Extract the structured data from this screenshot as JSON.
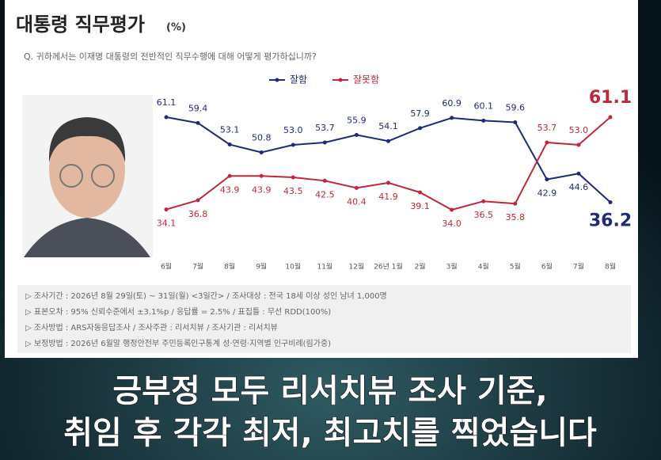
{
  "chart_data": {
    "type": "line",
    "title": "대통령 직무평가",
    "unit": "(%)",
    "subtitle": "Q. 귀하께서는 이재명 대통령의 전반적인 직무수행에 대해 어떻게 평가하십니까?",
    "categories": [
      "6월",
      "7월",
      "8월",
      "9월",
      "10월",
      "11월",
      "12월",
      "26년 1월",
      "2월",
      "3월",
      "4월",
      "5월",
      "6월",
      "7월",
      "8월"
    ],
    "series": [
      {
        "name": "잘함",
        "color": "#1f2a78",
        "values": [
          61.1,
          59.4,
          53.1,
          50.8,
          53.0,
          53.7,
          55.9,
          54.1,
          57.9,
          60.9,
          60.1,
          59.6,
          42.9,
          44.6,
          36.2
        ],
        "value_labels": [
          "61.1",
          "59.4",
          "53.1",
          "50.8",
          "53.0",
          "53.7",
          "55.9",
          "54.1",
          "57.9",
          "60.9",
          "60.1",
          "59.6",
          "42.9",
          "44.6",
          "36.2"
        ]
      },
      {
        "name": "잘못함",
        "color": "#c0283a",
        "values": [
          34.1,
          36.8,
          43.9,
          43.9,
          43.5,
          42.5,
          40.4,
          41.9,
          39.1,
          34.0,
          36.5,
          35.8,
          53.7,
          53.0,
          61.1
        ],
        "value_labels": [
          "34.1",
          "36.8",
          "43.9",
          "43.9",
          "43.5",
          "42.5",
          "40.4",
          "41.9",
          "39.1",
          "34.0",
          "36.5",
          "35.8",
          "53.7",
          "53.0",
          "61.1"
        ]
      }
    ],
    "notes": [
      "▷ 조사기간 : 2026년 8월 29일(토) ~ 31일(월) <3일간> / 조사대상 : 전국 18세 이상 성인 남녀 1,000명",
      "▷ 표본오차 : 95% 신뢰수준에서 ±3.1%p / 응답률 = 2.5% / 표집틀 : 무선 RDD(100%)",
      "▷ 조사방법 : ARS자동응답조사 / 조사주관 : 리서치뷰 / 조사기관 : 리서치뷰",
      "▷ 보정방법 : 2026년 6월말 행정안전부 주민등록인구통계 성·연령·지역별 인구비례(림가중)"
    ],
    "caption": [
      "긍부정 모두 리서치뷰 조사 기준,",
      "취임 후 각각 최저, 최고치를 찍었습니다"
    ]
  }
}
